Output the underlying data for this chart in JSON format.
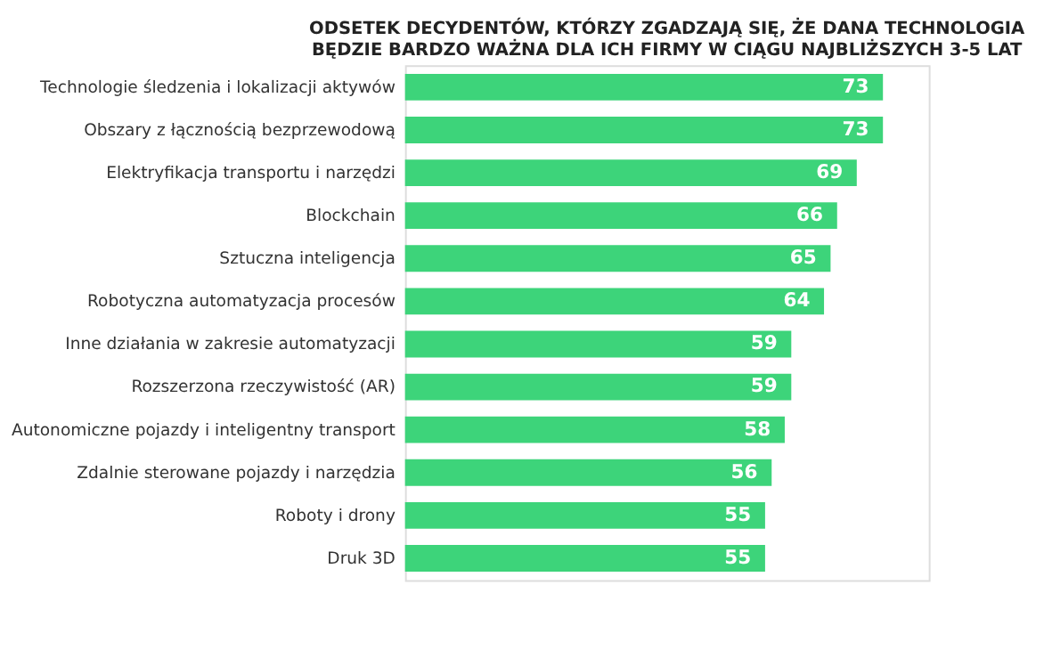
{
  "chart_data": {
    "type": "bar",
    "orientation": "horizontal",
    "title": [
      "ODSETEK DECYDENTÓW, KTÓRZY ZGADZAJĄ SIĘ, ŻE DANA TECHNOLOGIA",
      "BĘDZIE BARDZO WAŻNA DLA ICH FIRMY W CIĄGU NAJBLIŻSZYCH 3-5 LAT"
    ],
    "categories": [
      "Technologie śledzenia i lokalizacji aktywów",
      "Obszary z łącznością bezprzewodową",
      "Elektryfikacja transportu i narzędzi",
      "Blockchain",
      "Sztuczna inteligencja",
      "Robotyczna automatyzacja procesów",
      "Inne działania w zakresie automatyzacji",
      "Rozszerzona rzeczywistość (AR)",
      "Autonomiczne pojazdy i inteligentny transport",
      "Zdalnie sterowane pojazdy i narzędzia",
      "Roboty i drony",
      "Druk 3D"
    ],
    "values": [
      73,
      73,
      69,
      66,
      65,
      64,
      59,
      59,
      58,
      56,
      55,
      55
    ],
    "color": "#3dd47a",
    "data_labels": true,
    "grid": false,
    "tick_labels": "y"
  }
}
